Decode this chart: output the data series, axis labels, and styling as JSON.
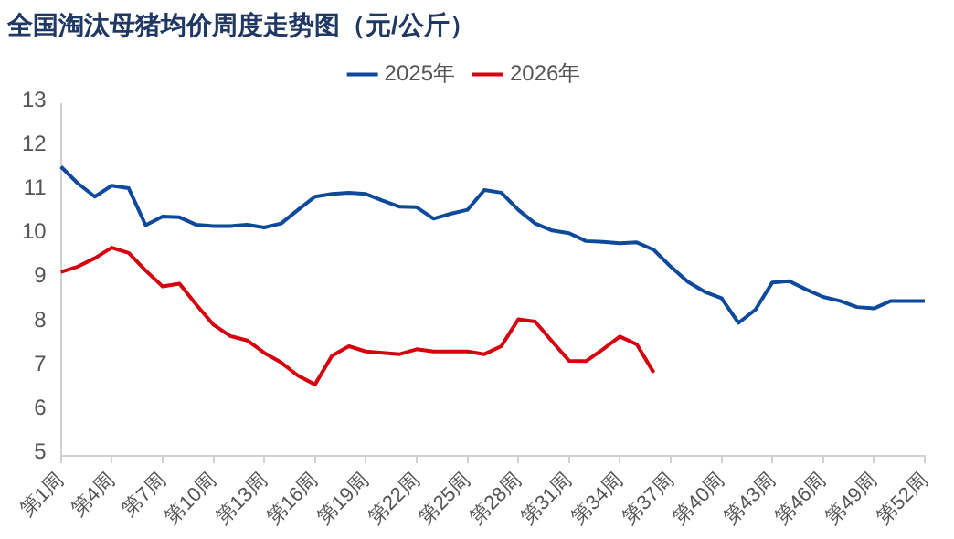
{
  "chart_data": {
    "type": "line",
    "title": "全国淘汰母猪均价周度走势图（元/公斤）",
    "categories": [
      "第1周",
      null,
      null,
      "第4周",
      null,
      null,
      "第7周",
      null,
      null,
      "第10周",
      null,
      null,
      "第13周",
      null,
      null,
      "第16周",
      null,
      null,
      "第19周",
      null,
      null,
      "第22周",
      null,
      null,
      "第25周",
      null,
      null,
      "第28周",
      null,
      null,
      "第31周",
      null,
      null,
      "第34周",
      null,
      null,
      "第37周",
      null,
      null,
      "第40周",
      null,
      null,
      "第43周",
      null,
      null,
      "第46周",
      null,
      null,
      "第49周",
      null,
      null,
      "第52周"
    ],
    "series": [
      {
        "name": "2025年",
        "color": "#0d4a9c",
        "values": [
          11.57,
          11.19,
          10.89,
          11.14,
          11.08,
          10.24,
          10.44,
          10.42,
          10.25,
          10.22,
          10.22,
          10.25,
          10.19,
          10.28,
          10.59,
          10.89,
          10.95,
          10.98,
          10.95,
          10.8,
          10.66,
          10.65,
          10.39,
          10.5,
          10.59,
          11.04,
          10.98,
          10.59,
          10.28,
          10.12,
          10.06,
          9.88,
          9.86,
          9.83,
          9.85,
          9.68,
          9.3,
          8.96,
          8.73,
          8.58,
          8.02,
          8.32,
          8.94,
          8.97,
          8.78,
          8.61,
          8.52,
          8.38,
          8.35,
          8.52,
          8.52,
          8.52
        ]
      },
      {
        "name": "2026年",
        "color": "#d7000f",
        "values": [
          9.18,
          9.3,
          9.49,
          9.73,
          9.61,
          9.21,
          8.85,
          8.91,
          8.43,
          7.98,
          7.72,
          7.62,
          7.34,
          7.12,
          6.82,
          6.62,
          7.27,
          7.49,
          7.37,
          7.34,
          7.31,
          7.42,
          7.37,
          7.37,
          7.37,
          7.31,
          7.49,
          8.1,
          8.05,
          7.6,
          7.16,
          7.15,
          7.42,
          7.71,
          7.53,
          6.89,
          null,
          null,
          null,
          null,
          null,
          null,
          null,
          null,
          null,
          null,
          null,
          null,
          null,
          null,
          null,
          null
        ]
      }
    ],
    "ylim": [
      5,
      13
    ],
    "yticks": [
      5,
      6,
      7,
      8,
      9,
      10,
      11,
      12,
      13
    ],
    "grid": false,
    "legend": "top",
    "marker": "none",
    "line_style": "solid"
  }
}
